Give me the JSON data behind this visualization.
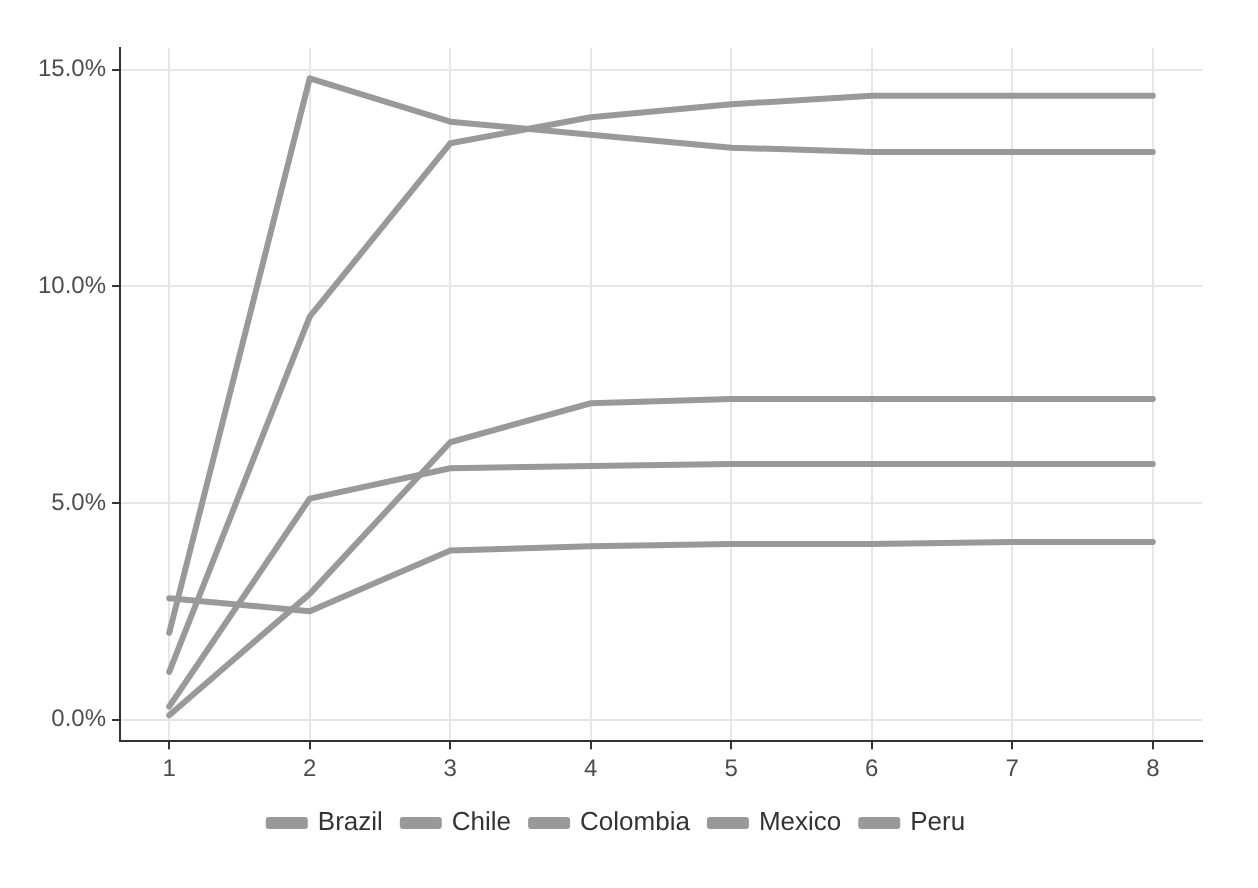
{
  "chart_data": {
    "type": "line",
    "x": [
      1,
      2,
      3,
      4,
      5,
      6,
      7,
      8
    ],
    "series": [
      {
        "name": "Brazil",
        "color": "#999999",
        "values": [
          2.0,
          14.8,
          13.8,
          13.5,
          13.2,
          13.1,
          13.1,
          13.1
        ]
      },
      {
        "name": "Chile",
        "color": "#999999",
        "values": [
          1.1,
          9.3,
          13.3,
          13.9,
          14.2,
          14.4,
          14.4,
          14.4
        ]
      },
      {
        "name": "Colombia",
        "color": "#999999",
        "values": [
          0.3,
          5.1,
          5.8,
          5.85,
          5.9,
          5.9,
          5.9,
          5.9
        ]
      },
      {
        "name": "Mexico",
        "color": "#999999",
        "values": [
          0.1,
          2.9,
          6.4,
          7.3,
          7.4,
          7.4,
          7.4,
          7.4
        ]
      },
      {
        "name": "Peru",
        "color": "#999999",
        "values": [
          2.8,
          2.5,
          3.9,
          4.0,
          4.05,
          4.05,
          4.1,
          4.1
        ]
      }
    ],
    "xlim": [
      0.65,
      8.35
    ],
    "xticks": [
      1,
      2,
      3,
      4,
      5,
      6,
      7,
      8
    ],
    "ylim": [
      -0.5,
      15.5
    ],
    "yticks": [
      {
        "value": 0,
        "label": "0.0%"
      },
      {
        "value": 5,
        "label": "5.0%"
      },
      {
        "value": 10,
        "label": "10.0%"
      },
      {
        "value": 15,
        "label": "15.0%"
      }
    ],
    "grid": true,
    "legend": "bottom",
    "marker": "none",
    "line_style": "solid"
  }
}
